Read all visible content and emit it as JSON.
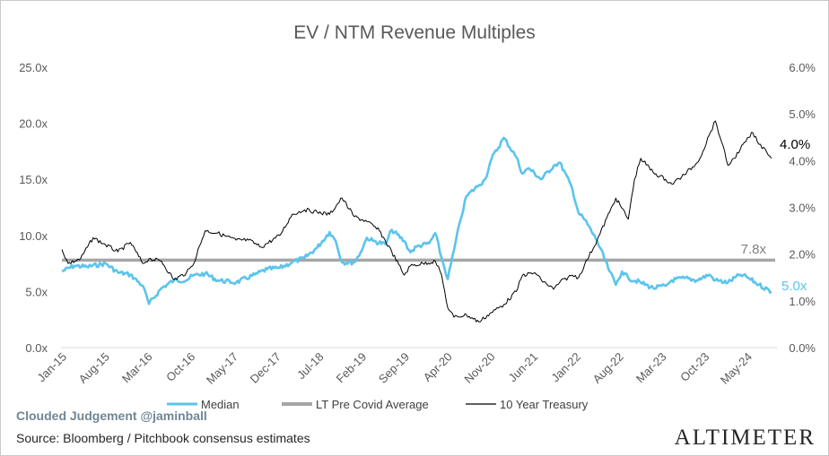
{
  "chart_data": {
    "type": "line",
    "title": "EV / NTM Revenue Multiples",
    "x_tick_labels": [
      "Jan-15",
      "Aug-15",
      "Mar-16",
      "Oct-16",
      "May-17",
      "Dec-17",
      "Jul-18",
      "Feb-19",
      "Sep-19",
      "Apr-20",
      "Nov-20",
      "Jun-21",
      "Jan-22",
      "Aug-22",
      "Mar-23",
      "Oct-23",
      "May-24"
    ],
    "y_left": {
      "ticks": [
        "0.0x",
        "5.0x",
        "10.0x",
        "15.0x",
        "20.0x",
        "25.0x"
      ],
      "ylim": [
        0,
        25
      ]
    },
    "y_right": {
      "ticks": [
        "0.0%",
        "1.0%",
        "2.0%",
        "3.0%",
        "4.0%",
        "5.0%",
        "6.0%"
      ],
      "ylim": [
        0,
        6
      ]
    },
    "grid": false,
    "legend_position": "bottom",
    "series": [
      {
        "name": "Median",
        "axis": "left",
        "color": "#5bc4ec",
        "dates": [
          "2015-01",
          "2015-03",
          "2015-05",
          "2015-08",
          "2015-10",
          "2015-12",
          "2016-02",
          "2016-03",
          "2016-05",
          "2016-07",
          "2016-09",
          "2016-10",
          "2016-12",
          "2017-02",
          "2017-05",
          "2017-08",
          "2017-10",
          "2017-12",
          "2018-02",
          "2018-04",
          "2018-06",
          "2018-08",
          "2018-09",
          "2018-10",
          "2018-12",
          "2019-01",
          "2019-02",
          "2019-03",
          "2019-05",
          "2019-06",
          "2019-08",
          "2019-09",
          "2019-10",
          "2019-12",
          "2020-01",
          "2020-02",
          "2020-03",
          "2020-04",
          "2020-05",
          "2020-06",
          "2020-08",
          "2020-09",
          "2020-10",
          "2020-12",
          "2021-02",
          "2021-03",
          "2021-04",
          "2021-06",
          "2021-08",
          "2021-09",
          "2021-11",
          "2021-12",
          "2022-01",
          "2022-03",
          "2022-05",
          "2022-06",
          "2022-07",
          "2022-08",
          "2022-10",
          "2022-12",
          "2023-02",
          "2023-03",
          "2023-05",
          "2023-07",
          "2023-09",
          "2023-10",
          "2023-12",
          "2024-02",
          "2024-03",
          "2024-05",
          "2024-07"
        ],
        "values": [
          6.8,
          7.3,
          7.2,
          7.5,
          6.7,
          6.5,
          5.5,
          3.9,
          5.3,
          6.0,
          6.0,
          6.4,
          6.6,
          6.0,
          5.8,
          6.5,
          7.0,
          7.1,
          7.6,
          8.0,
          8.9,
          10.3,
          9.5,
          7.6,
          7.6,
          8.5,
          9.8,
          9.5,
          9.2,
          10.5,
          9.5,
          8.5,
          9.0,
          9.3,
          10.2,
          8.0,
          6.1,
          8.7,
          11.3,
          13.5,
          14.5,
          15.0,
          16.8,
          18.7,
          17.0,
          15.5,
          16.0,
          15.0,
          16.2,
          16.5,
          14.2,
          12.0,
          11.4,
          9.5,
          6.8,
          5.6,
          6.8,
          6.2,
          5.8,
          5.3,
          5.5,
          6.0,
          6.2,
          6.0,
          6.5,
          6.0,
          5.8,
          6.5,
          6.3,
          5.6,
          5.0
        ]
      },
      {
        "name": "LT Pre Covid Average",
        "axis": "left",
        "color": "#a6a6a6",
        "value": 7.8
      },
      {
        "name": "10 Year Treasury",
        "axis": "right",
        "color": "#000000",
        "dates": [
          "2015-01",
          "2015-02",
          "2015-04",
          "2015-06",
          "2015-08",
          "2015-10",
          "2015-12",
          "2016-02",
          "2016-03",
          "2016-05",
          "2016-07",
          "2016-09",
          "2016-10",
          "2016-12",
          "2017-02",
          "2017-05",
          "2017-07",
          "2017-09",
          "2017-12",
          "2018-02",
          "2018-04",
          "2018-06",
          "2018-08",
          "2018-10",
          "2018-12",
          "2019-02",
          "2019-04",
          "2019-06",
          "2019-08",
          "2019-09",
          "2019-11",
          "2020-01",
          "2020-02",
          "2020-03",
          "2020-04",
          "2020-06",
          "2020-08",
          "2020-10",
          "2020-12",
          "2021-02",
          "2021-03",
          "2021-05",
          "2021-06",
          "2021-08",
          "2021-09",
          "2021-11",
          "2021-12",
          "2022-01",
          "2022-03",
          "2022-05",
          "2022-06",
          "2022-08",
          "2022-09",
          "2022-10",
          "2022-12",
          "2023-02",
          "2023-03",
          "2023-05",
          "2023-07",
          "2023-08",
          "2023-09",
          "2023-10",
          "2023-11",
          "2023-12",
          "2024-01",
          "2024-02",
          "2024-04",
          "2024-05",
          "2024-06",
          "2024-07"
        ],
        "values": [
          2.1,
          1.8,
          1.9,
          2.35,
          2.2,
          2.05,
          2.25,
          1.8,
          1.9,
          1.85,
          1.45,
          1.6,
          1.75,
          2.5,
          2.45,
          2.3,
          2.3,
          2.15,
          2.4,
          2.85,
          2.95,
          2.9,
          2.85,
          3.2,
          2.8,
          2.7,
          2.5,
          2.05,
          1.55,
          1.75,
          1.8,
          1.85,
          1.55,
          0.85,
          0.65,
          0.7,
          0.55,
          0.75,
          0.92,
          1.2,
          1.55,
          1.6,
          1.45,
          1.25,
          1.4,
          1.55,
          1.5,
          1.78,
          2.3,
          2.9,
          3.2,
          2.75,
          3.6,
          4.05,
          3.75,
          3.6,
          3.5,
          3.7,
          3.95,
          4.2,
          4.55,
          4.85,
          4.4,
          3.9,
          4.05,
          4.25,
          4.6,
          4.35,
          4.25,
          4.05
        ]
      }
    ],
    "annotations": [
      {
        "text": "4.0%",
        "color": "#000000"
      },
      {
        "text": "7.8x",
        "color": "#808080"
      },
      {
        "text": "5.0x",
        "color": "#5bc4ec"
      }
    ]
  },
  "footer": {
    "brand": "Clouded Judgement @jaminball",
    "source": "Source: Bloomberg / Pitchbook consensus estimates",
    "logo": "ALTIMETER"
  }
}
